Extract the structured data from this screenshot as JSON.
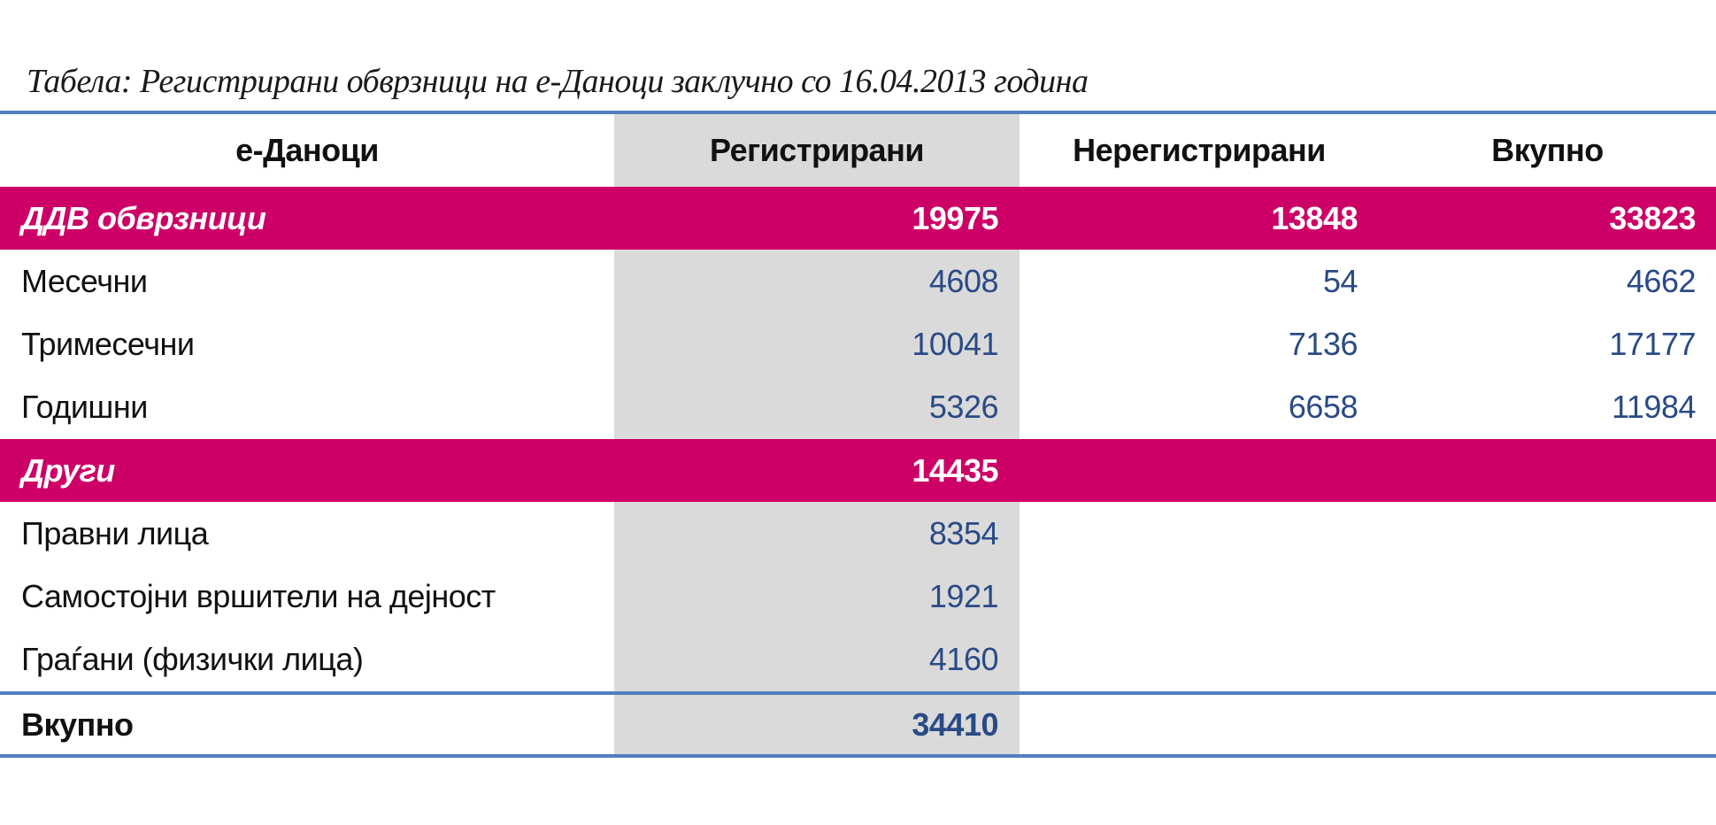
{
  "title": "Табела: Регистрирани обврзници на е-Даноци заклучно со 16.04.2013 година",
  "colors": {
    "accent_line": "#4f7fbf",
    "highlight_row": "#cc0066",
    "column_shade": "#dadada",
    "number_text": "#2a4a86"
  },
  "headers": [
    "е-Даноци",
    "Регистрирани",
    "Нерегистрирани",
    "Вкупно"
  ],
  "rows": [
    {
      "label": "ДДВ обврзници",
      "registered": "19975",
      "unregistered": "13848",
      "total": "33823",
      "group": true
    },
    {
      "label": "Месечни",
      "registered": "4608",
      "unregistered": "54",
      "total": "4662"
    },
    {
      "label": "Тримесечни",
      "registered": "10041",
      "unregistered": "7136",
      "total": "17177"
    },
    {
      "label": "Годишни",
      "registered": "5326",
      "unregistered": "6658",
      "total": "11984"
    },
    {
      "label": "Други",
      "registered": "14435",
      "unregistered": "",
      "total": "",
      "group": true
    },
    {
      "label": "Правни лица",
      "registered": "8354",
      "unregistered": "",
      "total": ""
    },
    {
      "label": "Самостојни вршители на дејност",
      "registered": "1921",
      "unregistered": "",
      "total": ""
    },
    {
      "label": "Граѓани (физички лица)",
      "registered": "4160",
      "unregistered": "",
      "total": ""
    }
  ],
  "total_row": {
    "label": "Вкупно",
    "registered": "34410"
  }
}
